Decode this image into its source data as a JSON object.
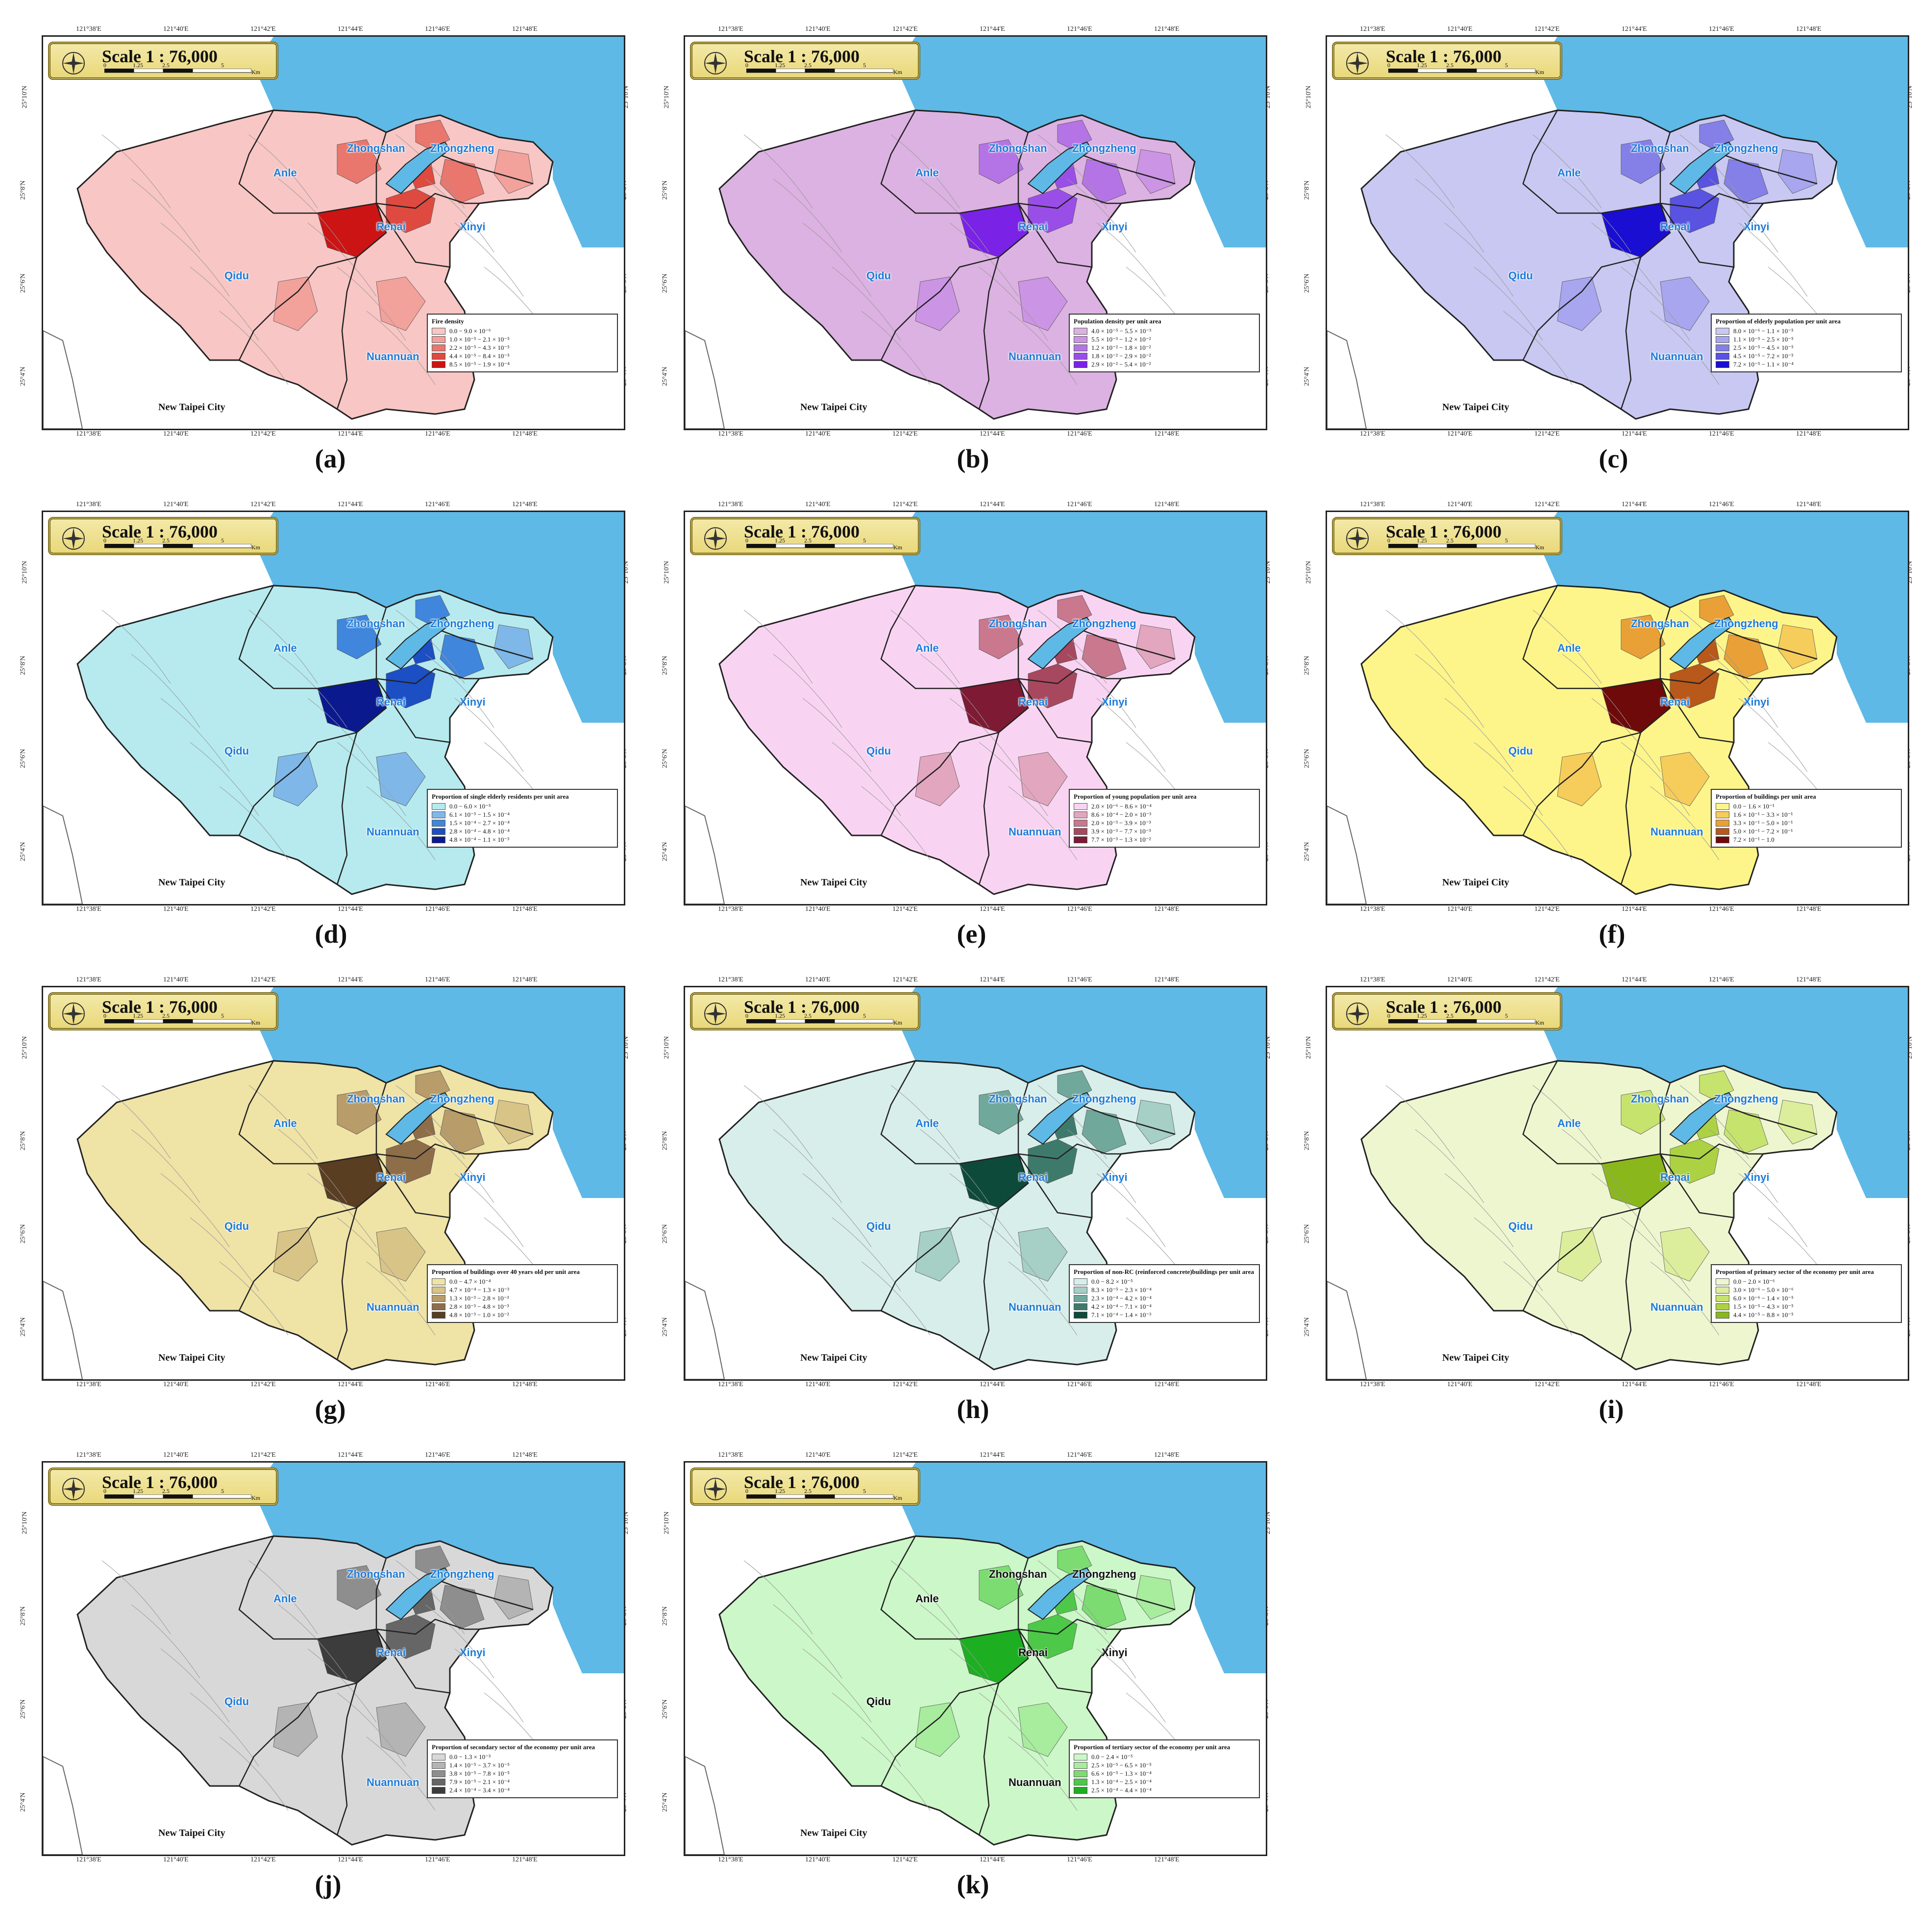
{
  "scale_title": "Scale 1 : 76,000",
  "scale_ticks": [
    "0",
    "1.25",
    "2.5",
    "5"
  ],
  "scale_unit": "Km",
  "lon_ticks": [
    "121°38'E",
    "121°40'E",
    "121°42'E",
    "121°44'E",
    "121°46'E",
    "121°48'E"
  ],
  "lat_ticks": [
    "25°10'N",
    "25°8'N",
    "25°6'N",
    "25°4'N"
  ],
  "districts": [
    "Zhongshan",
    "Zhongzheng",
    "Anle",
    "Xinyi",
    "Renai",
    "Qidu",
    "Nuannuan"
  ],
  "external_label": "New Taipei City",
  "panels": [
    {
      "caption": "(a)",
      "base": "#f8c6c4",
      "legend_title": "Fire density",
      "classes": [
        {
          "label": "0.0 − 9.0 × 10⁻⁶",
          "color": "#f8c6c4"
        },
        {
          "label": "1.0 × 10⁻⁵ − 2.1 × 10⁻⁵",
          "color": "#f2a19b"
        },
        {
          "label": "2.2 × 10⁻⁵ − 4.3 × 10⁻⁵",
          "color": "#e9776e"
        },
        {
          "label": "4.4 × 10⁻⁵ − 8.4 × 10⁻⁵",
          "color": "#de4a40"
        },
        {
          "label": "8.5 × 10⁻⁵ − 1.9 × 10⁻⁴",
          "color": "#cc1414"
        }
      ]
    },
    {
      "caption": "(b)",
      "base": "#dcb2e2",
      "legend_title": "Population density per unit area",
      "classes": [
        {
          "label": "4.0 × 10⁻⁵ − 5.5 × 10⁻³",
          "color": "#dcb2e2"
        },
        {
          "label": "5.5 × 10⁻³ − 1.2 × 10⁻²",
          "color": "#cc94e4"
        },
        {
          "label": "1.2 × 10⁻² − 1.8 × 10⁻²",
          "color": "#b574e6"
        },
        {
          "label": "1.8 × 10⁻² − 2.9 × 10⁻²",
          "color": "#9a4ee8"
        },
        {
          "label": "2.9 × 10⁻² − 5.4 × 10⁻²",
          "color": "#7a22e6"
        }
      ]
    },
    {
      "caption": "(c)",
      "base": "#c8c8f2",
      "legend_title": "Proportion of elderly population per unit area",
      "classes": [
        {
          "label": "8.0 × 10⁻⁶ − 1.1 × 10⁻⁵",
          "color": "#c8c8f2"
        },
        {
          "label": "1.1 × 10⁻⁵ − 2.5 × 10⁻⁵",
          "color": "#a8a6ee"
        },
        {
          "label": "2.5 × 10⁻⁵ − 4.5 × 10⁻⁵",
          "color": "#8480e8"
        },
        {
          "label": "4.5 × 10⁻⁵ − 7.2 × 10⁻⁵",
          "color": "#5a52e0"
        },
        {
          "label": "7.2 × 10⁻⁵ − 1.1 × 10⁻⁴",
          "color": "#1a0ed2"
        }
      ]
    },
    {
      "caption": "(d)",
      "base": "#b6eaee",
      "legend_title": "Proportion of single elderly residents per unit area",
      "classes": [
        {
          "label": "0.0 − 6.0 × 10⁻⁵",
          "color": "#b6eaee"
        },
        {
          "label": "6.1 × 10⁻⁵ − 1.5 × 10⁻⁴",
          "color": "#7fb8e8"
        },
        {
          "label": "1.5 × 10⁻⁴ − 2.7 × 10⁻⁴",
          "color": "#3f86dc"
        },
        {
          "label": "2.8 × 10⁻⁴ − 4.8 × 10⁻⁴",
          "color": "#1c4ec4"
        },
        {
          "label": "4.8 × 10⁻⁴ − 1.1 × 10⁻³",
          "color": "#0a1a8e"
        }
      ]
    },
    {
      "caption": "(e)",
      "base": "#f8d4f2",
      "legend_title": "Proportion of young population per unit area",
      "classes": [
        {
          "label": "2.0 × 10⁻⁶ − 8.6 × 10⁻⁴",
          "color": "#f8d4f2"
        },
        {
          "label": "8.6 × 10⁻⁴ − 2.0 × 10⁻³",
          "color": "#e2a6be"
        },
        {
          "label": "2.0 × 10⁻³ − 3.9 × 10⁻³",
          "color": "#c9788e"
        },
        {
          "label": "3.9 × 10⁻³ − 7.7 × 10⁻³",
          "color": "#a8485e"
        },
        {
          "label": "7.7 × 10⁻³ − 1.3 × 10⁻²",
          "color": "#7e1a34"
        }
      ]
    },
    {
      "caption": "(f)",
      "base": "#fdf58a",
      "legend_title": "Proportion of buildings per unit area",
      "classes": [
        {
          "label": "0.0 − 1.6 × 10⁻¹",
          "color": "#fdf58a"
        },
        {
          "label": "1.6 × 10⁻¹ − 3.3 × 10⁻¹",
          "color": "#f6cc5a"
        },
        {
          "label": "3.3 × 10⁻¹ − 5.0 × 10⁻¹",
          "color": "#e9a036"
        },
        {
          "label": "5.0 × 10⁻¹ − 7.2 × 10⁻¹",
          "color": "#b8581a"
        },
        {
          "label": "7.2 × 10⁻¹ − 1.0",
          "color": "#6e0a0a"
        }
      ]
    },
    {
      "caption": "(g)",
      "base": "#efe3a6",
      "legend_title": "Proportion of buildings over 40 years old per unit area",
      "classes": [
        {
          "label": "0.0 − 4.7 × 10⁻⁴",
          "color": "#efe3a6"
        },
        {
          "label": "4.7 × 10⁻⁴ − 1.3 × 10⁻³",
          "color": "#d9c488"
        },
        {
          "label": "1.3 × 10⁻³ − 2.8 × 10⁻³",
          "color": "#b89c6a"
        },
        {
          "label": "2.8 × 10⁻³ − 4.8 × 10⁻³",
          "color": "#8e6e48"
        },
        {
          "label": "4.8 × 10⁻³ − 1.0 × 10⁻²",
          "color": "#5a3e22"
        }
      ]
    },
    {
      "caption": "(h)",
      "base": "#d8eeea",
      "legend_title": "Proportion of non-RC (reinforced concrete)buildings per unit area",
      "classes": [
        {
          "label": "0.0 − 8.2 × 10⁻⁵",
          "color": "#d8eeea"
        },
        {
          "label": "8.3 × 10⁻⁵ − 2.3 × 10⁻⁴",
          "color": "#a6cfc6"
        },
        {
          "label": "2.3 × 10⁻⁴ − 4.2 × 10⁻⁴",
          "color": "#70a89c"
        },
        {
          "label": "4.2 × 10⁻⁴ − 7.1 × 10⁻⁴",
          "color": "#3e7a6c"
        },
        {
          "label": "7.1 × 10⁻⁴ − 1.4 × 10⁻³",
          "color": "#0e4a3a"
        }
      ]
    },
    {
      "caption": "(i)",
      "base": "#eef6d0",
      "legend_title": "Proportion of primary sector of the economy per unit area",
      "classes": [
        {
          "label": "0.0 − 2.0 × 10⁻⁶",
          "color": "#eef6d0"
        },
        {
          "label": "3.0 × 10⁻⁶ − 5.0 × 10⁻⁶",
          "color": "#dcee9c"
        },
        {
          "label": "6.0 × 10⁻⁶ − 1.4 × 10⁻⁵",
          "color": "#c6e36e"
        },
        {
          "label": "1.5 × 10⁻⁵ − 4.3 × 10⁻⁵",
          "color": "#acd244"
        },
        {
          "label": "4.4 × 10⁻⁵ − 8.8 × 10⁻⁵",
          "color": "#8ab81c"
        }
      ]
    },
    {
      "caption": "(j)",
      "base": "#d8d8d8",
      "legend_title": "Proportion of secondary sector of the economy per unit area",
      "classes": [
        {
          "label": "0.0 − 1.3 × 10⁻⁵",
          "color": "#d8d8d8"
        },
        {
          "label": "1.4 × 10⁻⁵ − 3.7 × 10⁻⁵",
          "color": "#b4b4b4"
        },
        {
          "label": "3.8 × 10⁻⁵ − 7.8 × 10⁻⁵",
          "color": "#8e8e8e"
        },
        {
          "label": "7.9 × 10⁻⁵ − 2.1 × 10⁻⁴",
          "color": "#666666"
        },
        {
          "label": "2.4 × 10⁻⁴ − 3.4 × 10⁻⁴",
          "color": "#3c3c3c"
        }
      ]
    },
    {
      "caption": "(k)",
      "base": "#ccf7c8",
      "legend_title": "Proportion of tertiary sector of the economy per unit area",
      "classes": [
        {
          "label": "0.0 − 2.4 × 10⁻⁵",
          "color": "#ccf7c8"
        },
        {
          "label": "2.5 × 10⁻⁵ − 6.5 × 10⁻⁵",
          "color": "#a8ec9e"
        },
        {
          "label": "6.6 × 10⁻⁵ − 1.3 × 10⁻⁴",
          "color": "#7cdc72"
        },
        {
          "label": "1.3 × 10⁻⁴ − 2.5 × 10⁻⁴",
          "color": "#4ec848"
        },
        {
          "label": "2.5 × 10⁻⁴ − 4.4 × 10⁻⁴",
          "color": "#1eae22"
        }
      ]
    }
  ]
}
